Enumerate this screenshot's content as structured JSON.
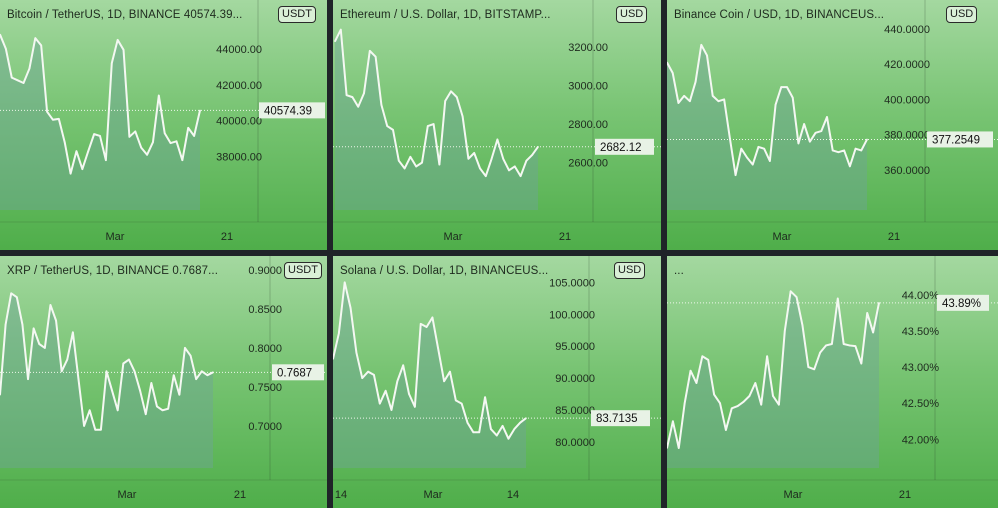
{
  "panels": [
    {
      "header": "Bitcoin / TetherUS, 1D, BINANCE  40574.39...",
      "unit": "USDT",
      "last_label": "40574.39",
      "last_value": 40574.39,
      "y_ticks": [
        "44000.00",
        "42000.00",
        "40000.00",
        "38000.00"
      ],
      "y_tick_values": [
        44000,
        42000,
        40000,
        38000
      ],
      "x_ticks": [
        "Mar",
        "21"
      ],
      "chart_data": {
        "type": "area",
        "series": [
          {
            "values": [
              44800,
              44000,
              42400,
              42250,
              42100,
              42900,
              44600,
              44200,
              40500,
              40050,
              40100,
              38800,
              37050,
              38300,
              37300,
              38300,
              39250,
              39150,
              37800,
              43200,
              44500,
              43950,
              39100,
              39400,
              38500,
              38100,
              38800,
              41400,
              39300,
              38750,
              38850,
              37800,
              39600,
              39150,
              40574.39
            ]
          }
        ],
        "ylim": [
          35300,
          45500
        ]
      }
    },
    {
      "header": "Ethereum / U.S. Dollar, 1D, BITSTAMP...",
      "unit": "USD",
      "last_label": "2682.12",
      "last_value": 2682.12,
      "y_ticks": [
        "3200.00",
        "3000.00",
        "2800.00",
        "2600.00"
      ],
      "y_tick_values": [
        3200,
        3000,
        2800,
        2600
      ],
      "x_ticks": [
        "Mar",
        "21"
      ],
      "chart_data": {
        "type": "area",
        "series": [
          {
            "values": [
              3230,
              3290,
              2950,
              2940,
              2890,
              2960,
              3180,
              3150,
              2900,
              2790,
              2770,
              2610,
              2570,
              2630,
              2580,
              2600,
              2790,
              2800,
              2590,
              2920,
              2970,
              2940,
              2840,
              2620,
              2650,
              2570,
              2530,
              2620,
              2720,
              2620,
              2560,
              2580,
              2530,
              2610,
              2640,
              2682.12
            ]
          }
        ],
        "ylim": [
          2380,
          3330
        ]
      }
    },
    {
      "header": "Binance Coin / USD, 1D, BINANCEUS...",
      "unit": "USD",
      "last_label": "377.2549",
      "last_value": 377.2549,
      "y_ticks": [
        "440.0000",
        "420.0000",
        "400.0000",
        "380.0000",
        "360.0000"
      ],
      "y_tick_values": [
        440,
        420,
        400,
        380,
        360
      ],
      "x_ticks": [
        "Mar",
        "21"
      ],
      "chart_data": {
        "type": "area",
        "series": [
          {
            "values": [
              421,
              415,
              398,
              402,
              399,
              410,
              431,
              425,
              402,
              399,
              400,
              378,
              357,
              372,
              367,
              363,
              373,
              372,
              365,
              397,
              407,
              407,
              401,
              375,
              386,
              376,
              381,
              382,
              390,
              371,
              370,
              371,
              362,
              372,
              371,
              377.2549
            ]
          }
        ],
        "ylim": [
          340,
          444
        ]
      }
    },
    {
      "header": "XRP / TetherUS, 1D, BINANCE  0.7687...",
      "unit": "USDT",
      "last_label": "0.7687",
      "last_value": 0.7687,
      "y_ticks": [
        "0.9000",
        "0.8500",
        "0.8000",
        "0.7500",
        "0.7000"
      ],
      "y_tick_values": [
        0.9,
        0.85,
        0.8,
        0.75,
        0.7
      ],
      "x_ticks": [
        "Mar",
        "21"
      ],
      "chart_data": {
        "type": "area",
        "series": [
          {
            "values": [
              0.74,
              0.83,
              0.87,
              0.865,
              0.83,
              0.76,
              0.825,
              0.805,
              0.8,
              0.855,
              0.835,
              0.77,
              0.785,
              0.82,
              0.76,
              0.7,
              0.72,
              0.695,
              0.695,
              0.77,
              0.745,
              0.72,
              0.78,
              0.785,
              0.77,
              0.745,
              0.715,
              0.755,
              0.725,
              0.72,
              0.722,
              0.765,
              0.74,
              0.8,
              0.79,
              0.76,
              0.77,
              0.765,
              0.7687
            ]
          }
        ],
        "ylim": [
          0.655,
          0.905
        ]
      }
    },
    {
      "header": "Solana / U.S. Dollar, 1D, BINANCEUS...",
      "unit": "USD",
      "last_label": "83.7135",
      "last_value": 83.7135,
      "y_ticks": [
        "105.0000",
        "100.0000",
        "95.0000",
        "90.0000",
        "85.0000",
        "80.0000"
      ],
      "y_tick_values": [
        105,
        100,
        95,
        90,
        85,
        80
      ],
      "x_ticks": [
        "14",
        "Mar",
        "14"
      ],
      "chart_data": {
        "type": "area",
        "series": [
          {
            "values": [
              93,
              97,
              105,
              101,
              94,
              90,
              91,
              90.5,
              86,
              88,
              85,
              89.5,
              92,
              87.5,
              85.5,
              98.5,
              98,
              99.5,
              94.5,
              89.5,
              91,
              86.5,
              86,
              83,
              81.5,
              81.5,
              87,
              82,
              81,
              82.5,
              80.5,
              82,
              83,
              83.7135
            ]
          }
        ],
        "ylim": [
          77,
          106
        ]
      }
    },
    {
      "header": "...",
      "unit": "",
      "last_label": "43.89%",
      "last_value": 43.89,
      "y_ticks": [
        "44.00%",
        "43.50%",
        "43.00%",
        "42.50%",
        "42.00%"
      ],
      "y_tick_values": [
        44,
        43.5,
        43,
        42.5,
        42
      ],
      "x_ticks": [
        "Mar",
        "21"
      ],
      "chart_data": {
        "type": "area",
        "series": [
          {
            "values": [
              41.88,
              42.25,
              41.88,
              42.5,
              42.95,
              42.78,
              43.15,
              43.1,
              42.62,
              42.5,
              42.13,
              42.43,
              42.46,
              42.52,
              42.6,
              42.78,
              42.48,
              43.15,
              42.6,
              42.48,
              43.5,
              44.05,
              43.97,
              43.58,
              43.0,
              42.97,
              43.2,
              43.3,
              43.32,
              43.95,
              43.32,
              43.3,
              43.29,
              43.05,
              43.75,
              43.48,
              43.89
            ]
          }
        ],
        "ylim": [
          41.7,
          44.4
        ]
      }
    }
  ]
}
